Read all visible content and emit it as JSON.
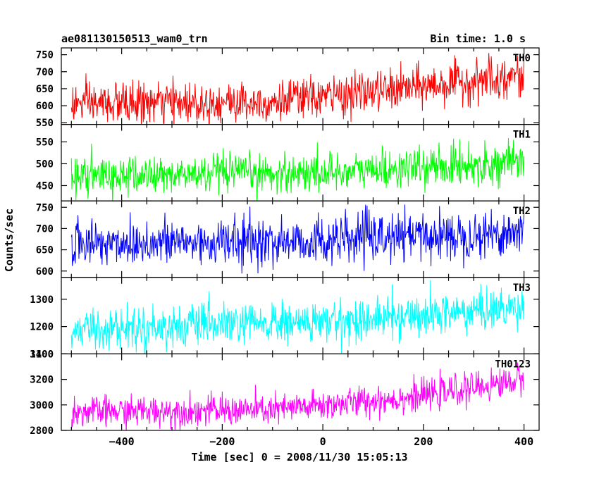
{
  "header": {
    "title": "ae081130150513_wam0_trn",
    "bin_time": "Bin time: 1.0 s"
  },
  "chart_data": {
    "type": "line",
    "title": "ae081130150513_wam0_trn",
    "xlabel": "Time [sec] 0 = 2008/11/30 15:05:13",
    "ylabel": "Counts/sec",
    "xlim": [
      -520,
      430
    ],
    "x_range": [
      -500,
      400
    ],
    "x_step": 1.0,
    "xticks": [
      -400,
      -200,
      0,
      200,
      400
    ],
    "xtick_labels": [
      "−400",
      "−200",
      "0",
      "200",
      "400"
    ],
    "grid": false,
    "legend": "none",
    "panels": [
      {
        "name": "TH0",
        "color": "#ff0000",
        "ylim": [
          545,
          770
        ],
        "yticks": [
          550,
          600,
          650,
          700,
          750
        ],
        "trend": [
          {
            "x": -500,
            "y": 605
          },
          {
            "x": -100,
            "y": 612
          },
          {
            "x": 100,
            "y": 640
          },
          {
            "x": 400,
            "y": 690
          }
        ],
        "noise": 30,
        "spike_max": 760
      },
      {
        "name": "TH1",
        "color": "#00ff00",
        "ylim": [
          415,
          590
        ],
        "yticks": [
          450,
          500,
          550
        ],
        "trend": [
          {
            "x": -500,
            "y": 470
          },
          {
            "x": 0,
            "y": 480
          },
          {
            "x": 400,
            "y": 503
          }
        ],
        "noise": 22,
        "spike_max": 565
      },
      {
        "name": "TH2",
        "color": "#0000ff",
        "ylim": [
          585,
          765
        ],
        "yticks": [
          600,
          650,
          700,
          750
        ],
        "trend": [
          {
            "x": -500,
            "y": 665
          },
          {
            "x": 0,
            "y": 670
          },
          {
            "x": 400,
            "y": 692
          }
        ],
        "noise": 28,
        "spike_max": 760
      },
      {
        "name": "TH3",
        "color": "#00ffff",
        "ylim": [
          1100,
          1380
        ],
        "yticks": [
          1100,
          1200,
          1300
        ],
        "trend": [
          {
            "x": -500,
            "y": 1190
          },
          {
            "x": 0,
            "y": 1215
          },
          {
            "x": 400,
            "y": 1270
          }
        ],
        "noise": 38,
        "spike_max": 1370
      },
      {
        "name": "TH0123",
        "color": "#ff00ff",
        "ylim": [
          2800,
          3400
        ],
        "yticks": [
          2800,
          3000,
          3200,
          3400
        ],
        "trend": [
          {
            "x": -500,
            "y": 2945
          },
          {
            "x": -100,
            "y": 2960
          },
          {
            "x": 200,
            "y": 3070
          },
          {
            "x": 400,
            "y": 3200
          }
        ],
        "noise": 60,
        "spike_max": 3390
      }
    ]
  }
}
